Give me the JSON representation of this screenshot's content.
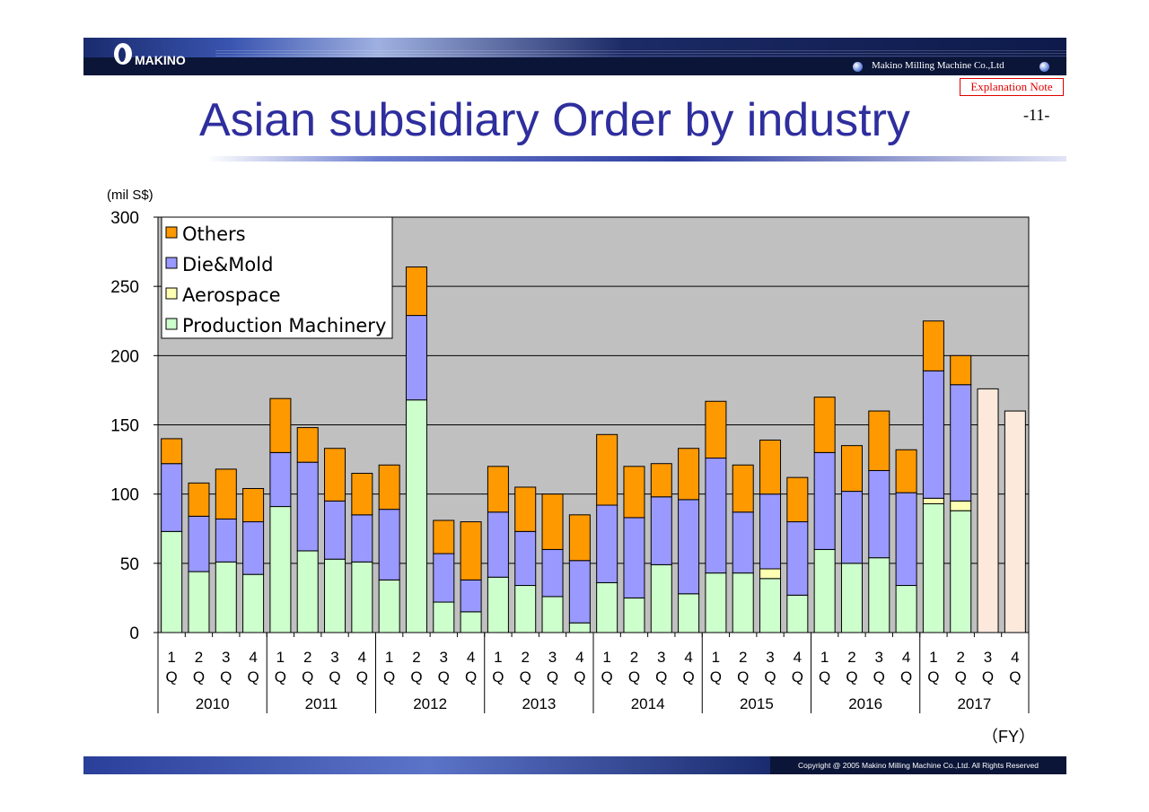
{
  "header": {
    "logo_text": "MAKINO",
    "company_name": "Makino Milling Machine Co.,Ltd",
    "explanation_note": "Explanation Note",
    "page_number": "-11-"
  },
  "footer": {
    "copyright": "Copyright @ 2005 Makino Milling Machine Co.,Ltd. All Rights Reserved"
  },
  "chart_data": {
    "type": "bar",
    "stacked": true,
    "title": "Asian subsidiary Order by industry",
    "ylabel": "(mil S$)",
    "xlabel": "（FY）",
    "ylim": [
      0,
      300
    ],
    "yticks": [
      "0",
      "50",
      "100",
      "150",
      "200",
      "250",
      "300"
    ],
    "grid": true,
    "legend_position": "top-left",
    "quarter_labels": [
      "1 Q",
      "2 Q",
      "3 Q",
      "4 Q",
      "1 Q",
      "2 Q",
      "3 Q",
      "4 Q",
      "1 Q",
      "2 Q",
      "3 Q",
      "4 Q",
      "1 Q",
      "2 Q",
      "3 Q",
      "4 Q",
      "1 Q",
      "2 Q",
      "3 Q",
      "4 Q",
      "1 Q",
      "2 Q",
      "3 Q",
      "4 Q",
      "1 Q",
      "2 Q",
      "3 Q",
      "4 Q",
      "1 Q",
      "2 Q",
      "3 Q",
      "4 Q"
    ],
    "years": [
      "2010",
      "2011",
      "2012",
      "2013",
      "2014",
      "2015",
      "2016",
      "2017"
    ],
    "colors": {
      "production": "#ccffcc",
      "aerospace": "#ffffb3",
      "diemold": "#9999ff",
      "others": "#ff9900",
      "plan": "#fde9dc",
      "plot_bg": "#c0c0c0"
    },
    "legend": [
      "Others",
      "Die&Mold",
      "Aerospace",
      "Production Machinery"
    ],
    "series": [
      {
        "name": "Production Machinery",
        "values": [
          73,
          44,
          51,
          42,
          91,
          59,
          53,
          51,
          38,
          168,
          22,
          15,
          40,
          34,
          26,
          7,
          36,
          25,
          49,
          28,
          43,
          43,
          39,
          27,
          60,
          50,
          54,
          34,
          93,
          88,
          0,
          0
        ]
      },
      {
        "name": "Aerospace",
        "values": [
          0,
          0,
          0,
          0,
          0,
          0,
          0,
          0,
          0,
          0,
          0,
          0,
          0,
          0,
          0,
          0,
          0,
          0,
          0,
          0,
          0,
          0,
          7,
          0,
          0,
          0,
          0,
          0,
          4,
          7,
          0,
          0
        ]
      },
      {
        "name": "Die&Mold",
        "values": [
          49,
          40,
          31,
          38,
          39,
          64,
          42,
          34,
          51,
          61,
          35,
          23,
          47,
          39,
          34,
          45,
          56,
          58,
          49,
          68,
          83,
          44,
          54,
          53,
          70,
          52,
          63,
          67,
          92,
          84,
          0,
          0
        ]
      },
      {
        "name": "Others",
        "values": [
          18,
          24,
          36,
          24,
          39,
          25,
          38,
          30,
          32,
          35,
          24,
          42,
          33,
          32,
          40,
          33,
          51,
          37,
          24,
          37,
          41,
          34,
          39,
          32,
          40,
          33,
          43,
          31,
          36,
          21,
          0,
          0
        ]
      },
      {
        "name": "Plan",
        "values": [
          0,
          0,
          0,
          0,
          0,
          0,
          0,
          0,
          0,
          0,
          0,
          0,
          0,
          0,
          0,
          0,
          0,
          0,
          0,
          0,
          0,
          0,
          0,
          0,
          0,
          0,
          0,
          0,
          0,
          0,
          176,
          160
        ]
      }
    ]
  }
}
